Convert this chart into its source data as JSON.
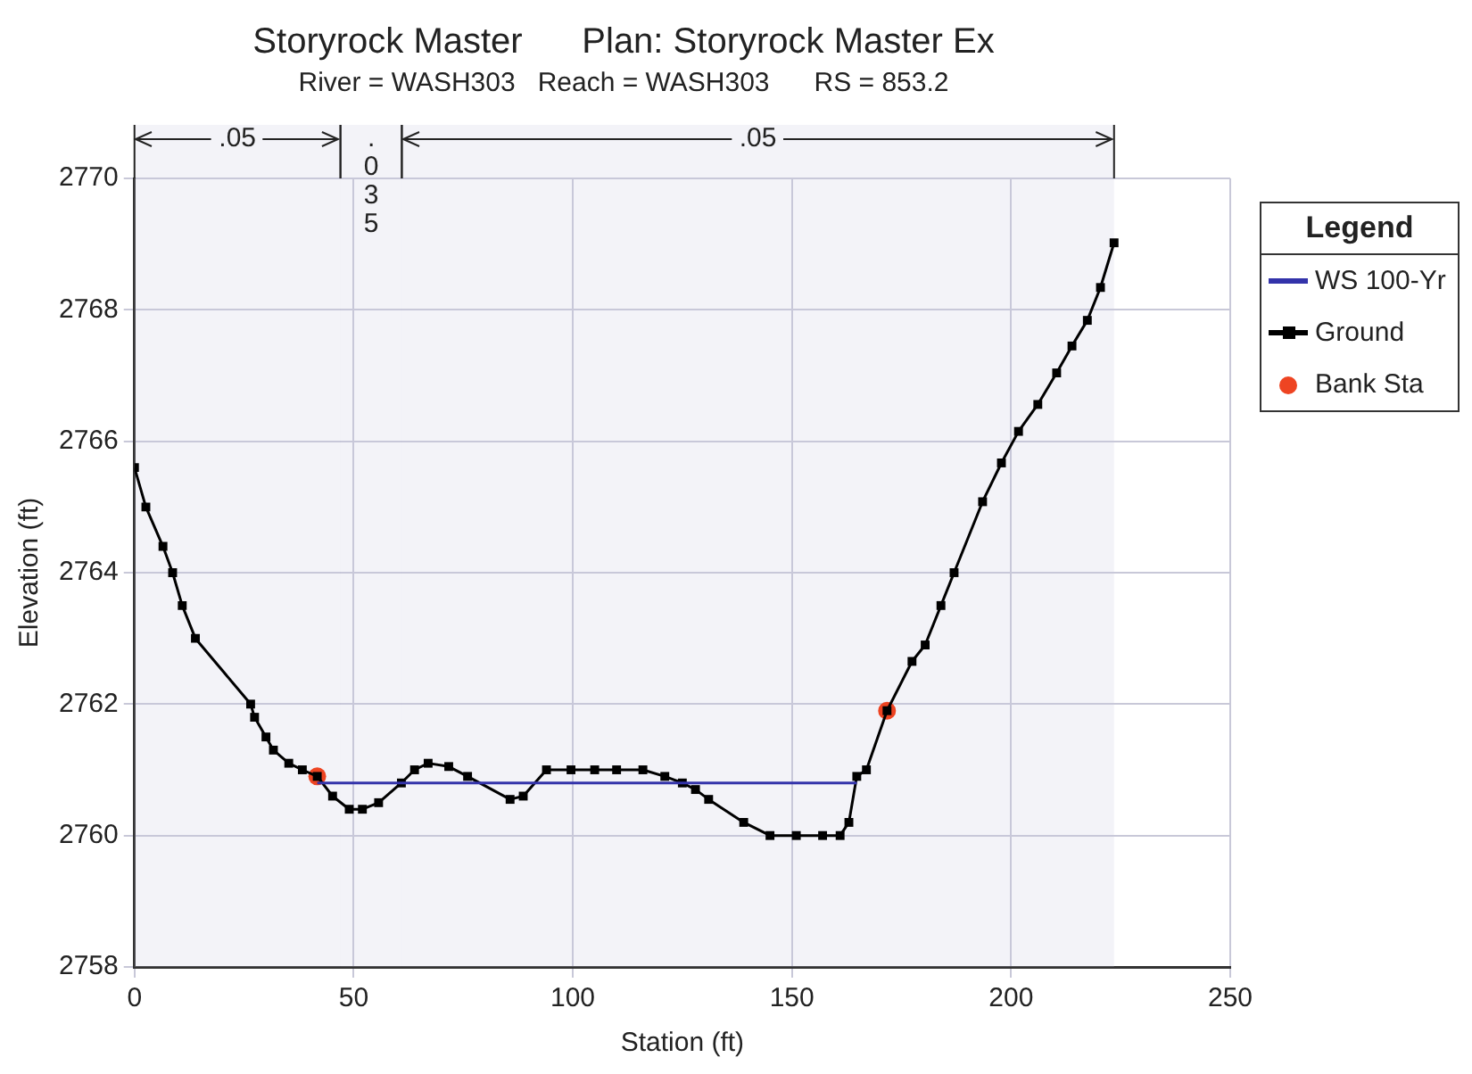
{
  "chart_data": {
    "type": "line",
    "title": "Storyrock Master      Plan: Storyrock Master Ex",
    "subtitle": "River = WASH303   Reach = WASH303      RS = 853.2",
    "xlabel": "Station (ft)",
    "ylabel": "Elevation (ft)",
    "legend_title": "Legend",
    "legend": "right",
    "grid": true,
    "xlim": [
      0,
      250
    ],
    "xticks": [
      0,
      50,
      100,
      150,
      200,
      250
    ],
    "ylim": [
      2758,
      2770
    ],
    "yticks": [
      2758,
      2760,
      2762,
      2764,
      2766,
      2768,
      2770
    ],
    "series": [
      {
        "name": "WS 100-Yr",
        "type": "line",
        "color": "#3333aa",
        "marker": "none",
        "x": [
          41.7,
          164.8
        ],
        "values": [
          2760.8,
          2760.8
        ]
      },
      {
        "name": "Ground",
        "type": "line",
        "color": "#000000",
        "marker": "square",
        "x": [
          0,
          2.6,
          6.5,
          8.7,
          10.9,
          13.9,
          26.5,
          27.4,
          30,
          31.7,
          35.2,
          38.3,
          41.7,
          45.2,
          49,
          52,
          55.7,
          60.9,
          63.9,
          67,
          71.7,
          76,
          85.7,
          88.7,
          94,
          99.6,
          105,
          110,
          116,
          121,
          125,
          128,
          131,
          139,
          145,
          151,
          157,
          161,
          163,
          164.8,
          167,
          171.7,
          177.4,
          180.4,
          184,
          187,
          193.5,
          197.8,
          201.7,
          206.1,
          210.4,
          213.9,
          217.4,
          220.4,
          223.5
        ],
        "values": [
          2765.6,
          2765.0,
          2764.4,
          2764.0,
          2763.5,
          2763.0,
          2762.0,
          2761.8,
          2761.5,
          2761.3,
          2761.1,
          2761.0,
          2760.9,
          2760.6,
          2760.4,
          2760.4,
          2760.5,
          2760.8,
          2761.0,
          2761.1,
          2761.05,
          2760.9,
          2760.55,
          2760.6,
          2761.0,
          2761.0,
          2761.0,
          2761.0,
          2761.0,
          2760.9,
          2760.8,
          2760.7,
          2760.55,
          2760.2,
          2760.0,
          2760.0,
          2760.0,
          2760.0,
          2760.2,
          2760.9,
          2761.0,
          2761.9,
          2762.65,
          2762.9,
          2763.5,
          2764.0,
          2765.08,
          2765.67,
          2766.15,
          2766.56,
          2767.04,
          2767.45,
          2767.84,
          2768.34,
          2769.02
        ]
      },
      {
        "name": "Bank Sta",
        "type": "scatter",
        "color": "#ee4422",
        "marker": "circle",
        "x": [
          41.7,
          171.7
        ],
        "values": [
          2760.9,
          2761.9
        ]
      }
    ],
    "bands": [
      {
        "axis": "x",
        "from": 0,
        "to": 47,
        "label": ".05"
      },
      {
        "axis": "x",
        "from": 47,
        "to": 61,
        "label": ".035"
      },
      {
        "axis": "x",
        "from": 61,
        "to": 223.5,
        "label": ".05"
      }
    ]
  }
}
